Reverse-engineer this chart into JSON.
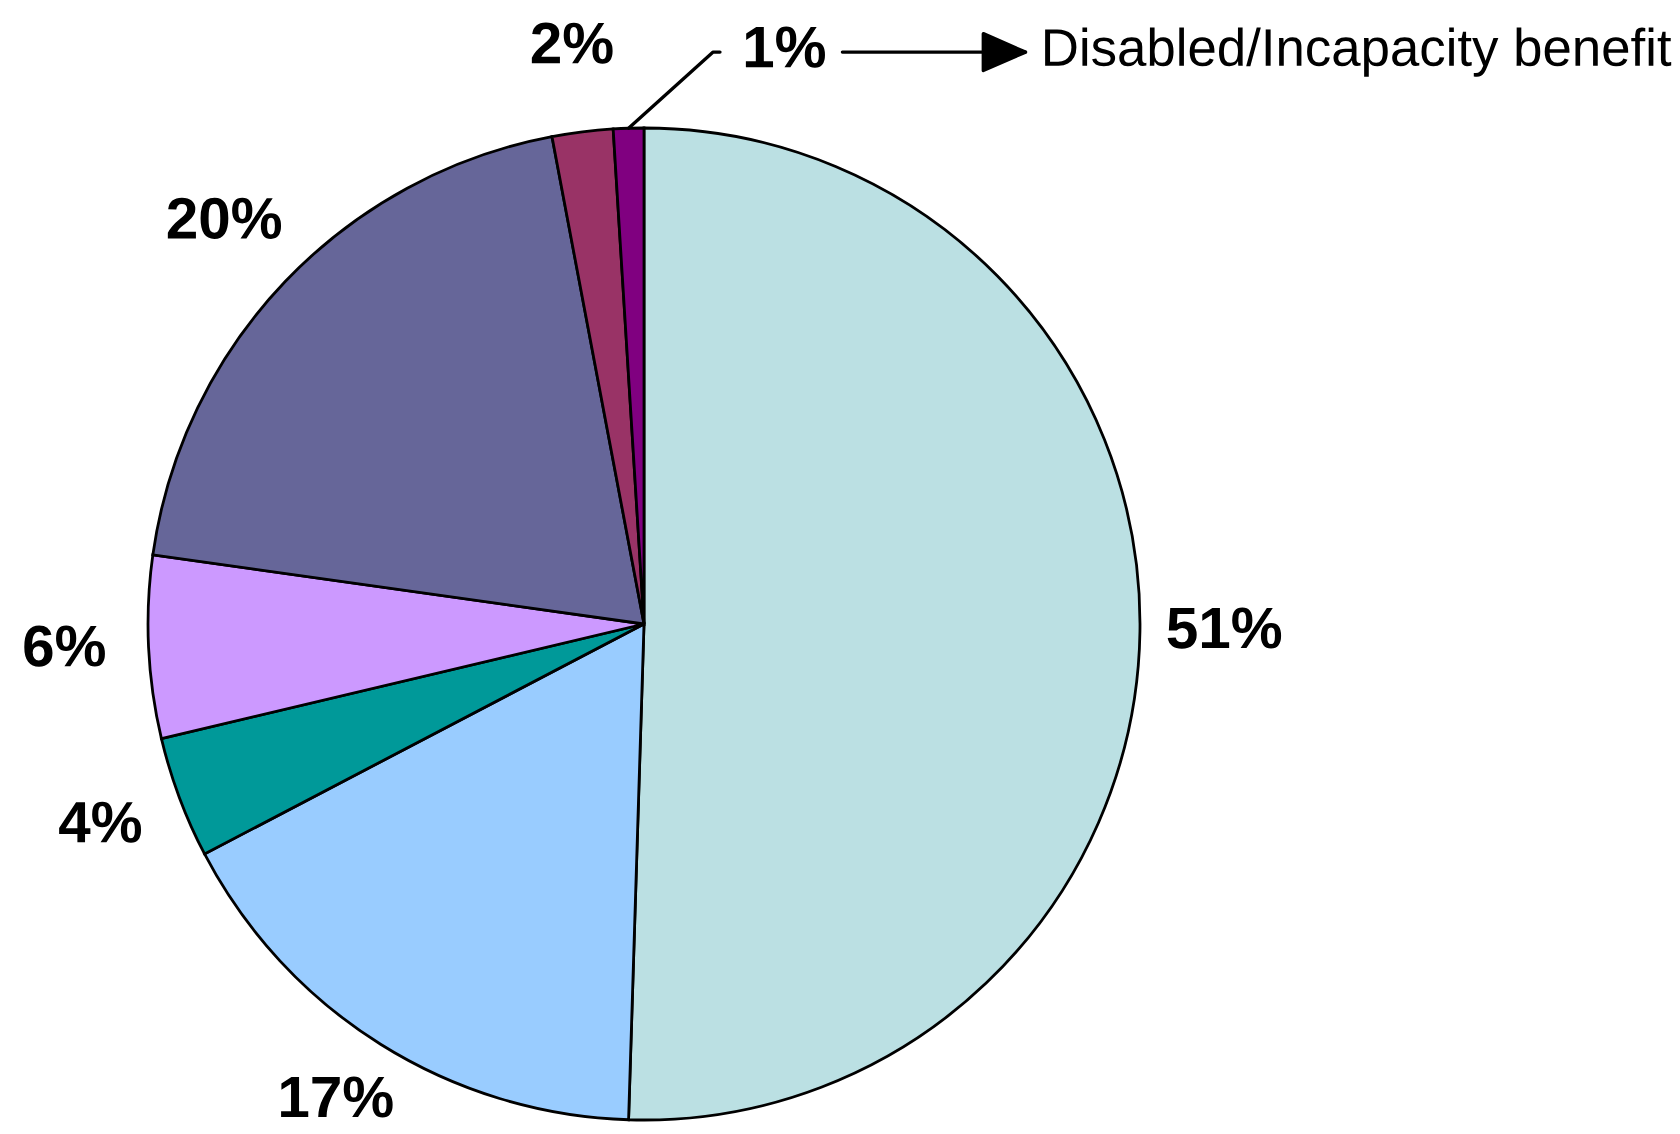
{
  "chart_data": {
    "type": "pie",
    "categories": [
      null,
      null,
      null,
      null,
      null,
      null,
      "Disabled/Incapacity benefit"
    ],
    "values": [
      51,
      17,
      4,
      6,
      20,
      2,
      1
    ],
    "colors": [
      "#bbe0e3",
      "#99ccff",
      "#009999",
      "#cc99ff",
      "#666699",
      "#993366",
      "#800080"
    ],
    "value_labels": [
      "51%",
      "17%",
      "4%",
      "6%",
      "20%",
      "2%",
      "1%"
    ]
  }
}
